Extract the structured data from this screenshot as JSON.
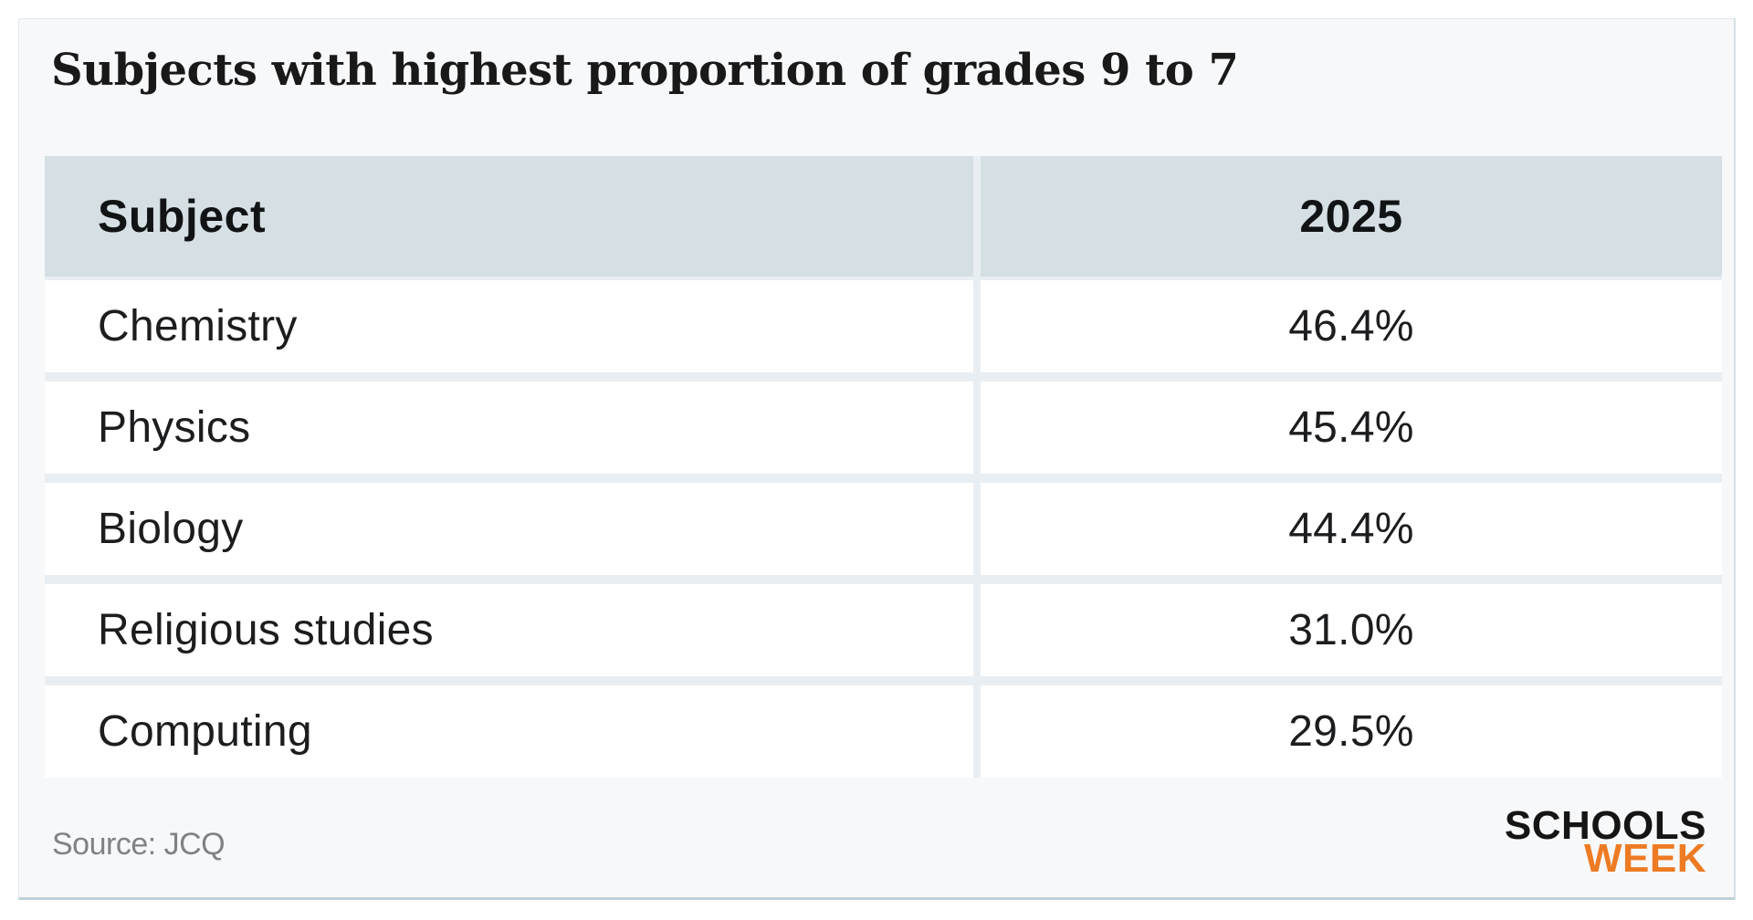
{
  "title": "Subjects with highest proportion of grades 9 to 7",
  "chart_data": {
    "type": "table",
    "title": "Subjects with highest proportion of grades 9 to 7",
    "columns": [
      "Subject",
      "2025"
    ],
    "categories": [
      "Chemistry",
      "Physics",
      "Biology",
      "Religious studies",
      "Computing"
    ],
    "values": [
      46.4,
      45.4,
      44.4,
      31.0,
      29.5
    ],
    "value_unit": "%",
    "source": "JCQ"
  },
  "table": {
    "headers": {
      "subject": "Subject",
      "year": "2025"
    },
    "rows": [
      {
        "subject": "Chemistry",
        "value": "46.4%"
      },
      {
        "subject": "Physics",
        "value": "45.4%"
      },
      {
        "subject": "Biology",
        "value": "44.4%"
      },
      {
        "subject": "Religious studies",
        "value": "31.0%"
      },
      {
        "subject": "Computing",
        "value": "29.5%"
      }
    ]
  },
  "footer": {
    "source": "Source: JCQ",
    "logo_line1": "SCHOOLS",
    "logo_line2": "WEEK"
  },
  "colors": {
    "card_background": "#f7f8fa",
    "header_background": "#d6e0e4",
    "row_gap": "#e9eef2",
    "logo_orange": "#ed7b23",
    "text": "#1b1d1f",
    "source_text": "#7f8285"
  }
}
